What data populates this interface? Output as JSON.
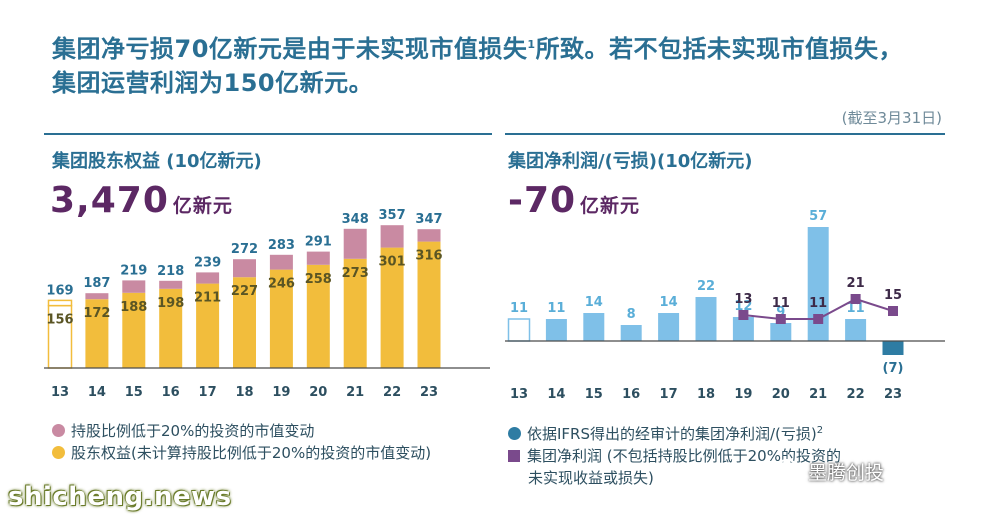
{
  "headline": {
    "line1_a": "集团净亏损70亿新元是由于未实现市值损失",
    "line1_sup": "1",
    "line1_b": "所致。若不包括未实现市值损失，",
    "line2": "集团运营利润为150亿新元。"
  },
  "as_of": "(截至3月31日)",
  "left": {
    "title": "集团股东权益 (10亿新元)",
    "big_value": "3,470",
    "big_unit": "亿新元",
    "legend": [
      {
        "label": "持股比例低于20%的投资的市值变动",
        "color": "#c98aa2"
      },
      {
        "label": "股东权益(未计算持股比例低于20%的投资的市值变动)",
        "color": "#f2bd3c"
      }
    ]
  },
  "right": {
    "title": "集团净利润/(亏损)(10亿新元)",
    "big_value": "-70",
    "big_unit": "亿新元",
    "legend": [
      {
        "label": "依据IFRS得出的经审计的集团净利润/(亏损)",
        "sup": "2",
        "color": "#2e7ca3"
      },
      {
        "label_line1": "集团净利润 (不包括持股比例低于20%的投资的",
        "label_line2": "未实现收益或损失)",
        "color": "#7a4a8c"
      }
    ]
  },
  "watermark": "shicheng.news",
  "watermark2": "墨腾创投",
  "colors": {
    "gold": "#f2bd3c",
    "pink": "#c98aa2",
    "sky": "#7fc0e8",
    "navy": "#2e7ca3",
    "purple": "#7a4a8c",
    "label_blue": "#2a6f93",
    "label_light": "#5aaed8"
  },
  "chart_data": [
    {
      "type": "bar",
      "title": "集团股东权益 (10亿新元)",
      "categories": [
        "13",
        "14",
        "15",
        "16",
        "17",
        "18",
        "19",
        "20",
        "21",
        "22",
        "23"
      ],
      "series": [
        {
          "name": "股东权益(未计算持股比例低于20%的投资的市值变动)",
          "values": [
            156,
            172,
            188,
            198,
            211,
            227,
            246,
            258,
            273,
            301,
            316
          ]
        },
        {
          "name": "持股比例低于20%的投资的市值变动",
          "values": [
            13,
            15,
            31,
            20,
            28,
            45,
            37,
            33,
            75,
            56,
            31
          ]
        }
      ],
      "totals": [
        169,
        187,
        219,
        218,
        239,
        272,
        283,
        291,
        348,
        357,
        347
      ],
      "base_labels": [
        "156",
        "172",
        "188",
        "198",
        "211",
        "227",
        "246",
        "258",
        "273",
        "301",
        "316"
      ],
      "total_labels": [
        "169",
        "187",
        "219",
        "218",
        "239",
        "272",
        "283",
        "291",
        "348",
        "357",
        "347"
      ],
      "stacked": true,
      "ylim": [
        0,
        380
      ]
    },
    {
      "type": "bar",
      "title": "集团净利润/(亏损)(10亿新元)",
      "categories": [
        "13",
        "14",
        "15",
        "16",
        "17",
        "18",
        "19",
        "20",
        "21",
        "22",
        "23"
      ],
      "series": [
        {
          "name": "依据IFRS得出的经审计的集团净利润/(亏损)",
          "values": [
            11,
            11,
            14,
            8,
            14,
            22,
            12,
            9,
            57,
            11,
            -7
          ]
        },
        {
          "name": "集团净利润 (不包括持股比例低于20%的投资的未实现收益或损失)",
          "type": "line",
          "x": [
            "19",
            "20",
            "21",
            "22",
            "23"
          ],
          "values": [
            13,
            11,
            11,
            21,
            15
          ]
        }
      ],
      "bar_labels": [
        "11",
        "11",
        "14",
        "8",
        "14",
        "22",
        "12",
        "9",
        "57",
        "11",
        "(7)"
      ],
      "line_labels": [
        "13",
        "11",
        "11",
        "21",
        "15"
      ],
      "ylim": [
        -10,
        60
      ]
    }
  ]
}
